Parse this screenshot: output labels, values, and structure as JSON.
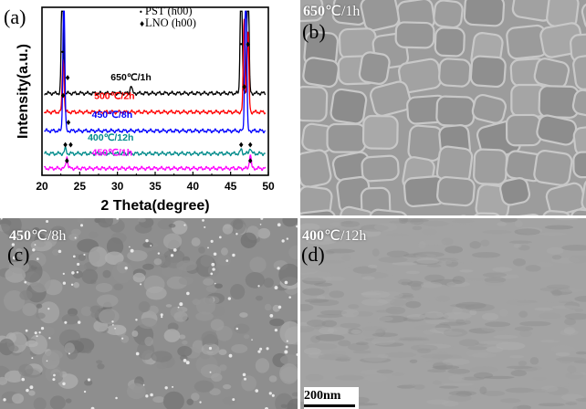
{
  "panels": {
    "a": {
      "letter": "(a)"
    },
    "b": {
      "letter": "(b)",
      "cond_temp": "650",
      "cond_rest": "℃/1h"
    },
    "c": {
      "letter": "(c)",
      "cond_temp": "450",
      "cond_rest": "℃/8h"
    },
    "d": {
      "letter": "(d)",
      "cond_temp": "400",
      "cond_rest": "℃/12h"
    }
  },
  "scale_bar": {
    "label": "200nm"
  },
  "chart_data": {
    "type": "line",
    "xlabel": "2 Theta(degree)",
    "ylabel": "Intensity(a.u.)",
    "xlim": [
      20,
      50
    ],
    "xticks": [
      20,
      25,
      30,
      35,
      40,
      45,
      50
    ],
    "legend": {
      "placement": "top-center",
      "entries": [
        {
          "marker": "•",
          "label": "PST (h00)"
        },
        {
          "marker": "♦",
          "label": "LNO (h00)"
        }
      ]
    },
    "series": [
      {
        "name": "650℃/1h",
        "color": "#000000",
        "baseline": 0.83,
        "peaks": [
          {
            "x": 22.7,
            "h": 1.5
          },
          {
            "x": 31.8,
            "h": 0.08
          },
          {
            "x": 46.4,
            "h": 1.4
          },
          {
            "x": 47.3,
            "h": 1.45
          }
        ]
      },
      {
        "name": "500℃/2h",
        "color": "#ff0000",
        "baseline": 0.64,
        "peaks": [
          {
            "x": 22.8,
            "h": 0.55
          },
          {
            "x": 46.8,
            "h": 0.95
          },
          {
            "x": 47.3,
            "h": 0.8
          }
        ]
      },
      {
        "name": "450℃/8h",
        "color": "#0000ff",
        "baseline": 0.45,
        "peaks": [
          {
            "x": 22.9,
            "h": 1.4
          },
          {
            "x": 47.0,
            "h": 1.6
          }
        ]
      },
      {
        "name": "400℃/12h",
        "color": "#008b8b",
        "baseline": 0.22,
        "peaks": [
          {
            "x": 23.1,
            "h": 0.05
          },
          {
            "x": 46.4,
            "h": 0.04
          },
          {
            "x": 47.6,
            "h": 0.06
          }
        ]
      },
      {
        "name": "450℃/1h",
        "color": "#ff00ff",
        "baseline": 0.07,
        "peaks": [
          {
            "x": 23.3,
            "h": 0.12
          },
          {
            "x": 47.6,
            "h": 0.14
          }
        ]
      }
    ],
    "markers": [
      {
        "symbol": "•",
        "x": 22.7,
        "y": 1.22
      },
      {
        "symbol": "♦",
        "x": 23.4,
        "y": 0.96
      },
      {
        "symbol": "•",
        "x": 46.4,
        "y": 1.3
      },
      {
        "symbol": "♦",
        "x": 47.3,
        "y": 1.3
      },
      {
        "symbol": "♦",
        "x": 22.8,
        "y": 0.78
      },
      {
        "symbol": "♦",
        "x": 46.8,
        "y": 0.87
      },
      {
        "symbol": "♦",
        "x": 23.5,
        "y": 0.51
      },
      {
        "symbol": "♦",
        "x": 23.1,
        "y": 0.28
      },
      {
        "symbol": "♦",
        "x": 23.8,
        "y": 0.28
      },
      {
        "symbol": "♦",
        "x": 46.4,
        "y": 0.28
      },
      {
        "symbol": "♦",
        "x": 47.6,
        "y": 0.28
      },
      {
        "symbol": "♦",
        "x": 23.3,
        "y": 0.12
      },
      {
        "symbol": "♦",
        "x": 47.6,
        "y": 0.12
      }
    ]
  }
}
